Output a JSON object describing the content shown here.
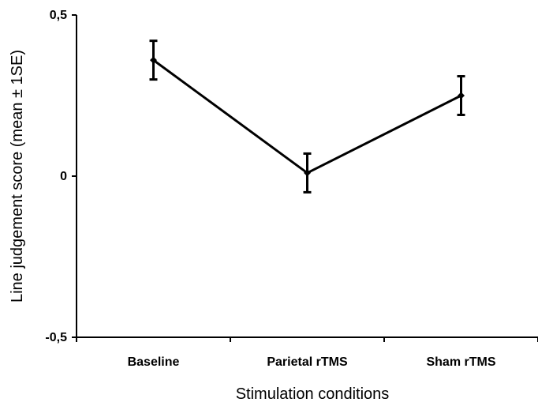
{
  "chart_data": {
    "type": "line",
    "title": "",
    "xlabel": "Stimulation conditions",
    "ylabel": "Line judgement score (mean ± 1SE)",
    "categories": [
      "Baseline",
      "Parietal rTMS",
      "Sham rTMS"
    ],
    "series": [
      {
        "values": [
          0.36,
          0.01,
          0.25
        ],
        "error": [
          0.06,
          0.06,
          0.06
        ]
      }
    ],
    "ylim": [
      -0.5,
      0.5
    ],
    "yticks": [
      -0.5,
      0,
      0.5
    ],
    "ytick_labels": [
      "-0,5",
      "0",
      "0,5"
    ],
    "grid": false,
    "legend": "none",
    "colors": {
      "line": "#000000",
      "axis": "#000000"
    }
  }
}
